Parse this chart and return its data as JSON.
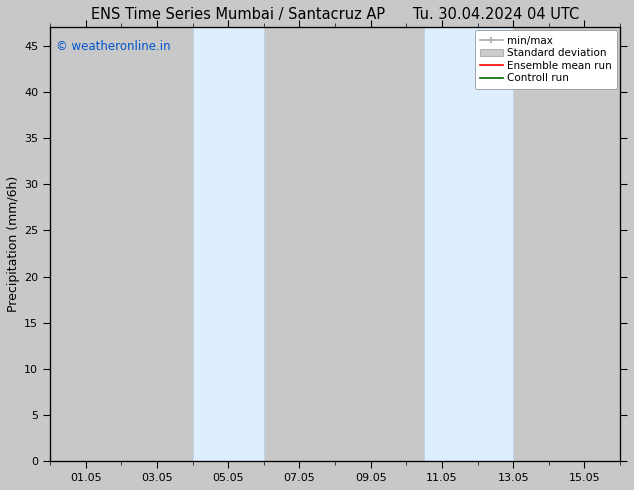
{
  "title_left": "ENS Time Series Mumbai / Santacruz AP",
  "title_right": "Tu. 30.04.2024 04 UTC",
  "ylabel": "Precipitation (mm/6h)",
  "ylim": [
    0,
    47
  ],
  "yticks": [
    0,
    5,
    10,
    15,
    20,
    25,
    30,
    35,
    40,
    45
  ],
  "xtick_labels": [
    "01.05",
    "03.05",
    "05.05",
    "07.05",
    "09.05",
    "11.05",
    "13.05",
    "15.05"
  ],
  "xtick_positions": [
    1,
    3,
    5,
    7,
    9,
    11,
    13,
    15
  ],
  "xlim": [
    0,
    16
  ],
  "shaded_bands": [
    {
      "x_start": 4.0,
      "x_end": 6.0
    },
    {
      "x_start": 10.5,
      "x_end": 13.0
    }
  ],
  "shaded_color": "#ddeeff",
  "shaded_edge_color": "#b8d0e8",
  "background_color": "#c8c8c8",
  "plot_bg_color": "#c8c8c8",
  "watermark_text": "© weatheronline.in",
  "watermark_color": "#0055cc",
  "legend_entries": [
    {
      "label": "min/max"
    },
    {
      "label": "Standard deviation"
    },
    {
      "label": "Ensemble mean run"
    },
    {
      "label": "Controll run"
    }
  ],
  "legend_colors": [
    "#aaaaaa",
    "#cccccc",
    "#ff0000",
    "#006600"
  ],
  "title_fontsize": 10.5,
  "tick_fontsize": 8,
  "ylabel_fontsize": 9,
  "watermark_fontsize": 8.5,
  "legend_fontsize": 7.5
}
